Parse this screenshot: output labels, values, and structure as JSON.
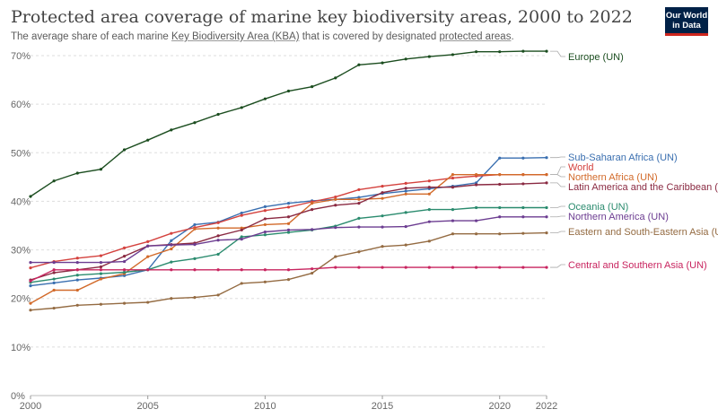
{
  "header": {
    "title": "Protected area coverage of marine key biodiversity areas, 2000 to 2022",
    "subtitle_prefix": "The average share of each marine ",
    "subtitle_link1": "Key Biodiversity Area (KBA)",
    "subtitle_middle": " that is covered by designated ",
    "subtitle_link2": "protected areas",
    "subtitle_suffix": "."
  },
  "logo": {
    "line1": "Our World",
    "line2": "in Data"
  },
  "chart_data": {
    "type": "line",
    "title": "Protected area coverage of marine key biodiversity areas, 2000 to 2022",
    "xlabel": "",
    "ylabel": "",
    "x": [
      2000,
      2001,
      2002,
      2003,
      2004,
      2005,
      2006,
      2007,
      2008,
      2009,
      2010,
      2011,
      2012,
      2013,
      2014,
      2015,
      2016,
      2017,
      2018,
      2019,
      2020,
      2021,
      2022
    ],
    "xlim": [
      2000,
      2022
    ],
    "ylim": [
      0,
      70
    ],
    "x_ticks": [
      "2000",
      "2005",
      "2010",
      "2015",
      "2020",
      "2022"
    ],
    "y_ticks": [
      "0%",
      "10%",
      "20%",
      "30%",
      "40%",
      "50%",
      "60%",
      "70%"
    ],
    "grid": true,
    "legend": "right, labels at line ends",
    "series": [
      {
        "name": "Europe (UN)",
        "color": "#1b4d1f",
        "values": [
          41,
          44.2,
          45.8,
          46.6,
          50.6,
          52.6,
          54.7,
          56.2,
          57.9,
          59.3,
          61.1,
          62.7,
          63.6,
          65.4,
          68.1,
          68.5,
          69.3,
          69.8,
          70.2,
          70.8,
          70.8,
          70.9,
          70.9
        ]
      },
      {
        "name": "Sub-Saharan Africa (UN)",
        "color": "#3a6fb0",
        "values": [
          22.6,
          23.2,
          23.8,
          24.2,
          24.7,
          25.9,
          31.9,
          35.2,
          35.7,
          37.6,
          38.9,
          39.6,
          40.1,
          40.4,
          40.8,
          41.6,
          42.1,
          42.6,
          43.1,
          43.8,
          48.9,
          48.9,
          49
        ]
      },
      {
        "name": "World",
        "color": "#d4423e",
        "values": [
          26.3,
          27.6,
          28.3,
          28.8,
          30.4,
          31.7,
          33.4,
          34.6,
          35.6,
          37.1,
          38.1,
          38.8,
          39.9,
          40.9,
          42.4,
          43.1,
          43.7,
          44.2,
          44.8,
          45.2,
          45.5,
          45.5,
          45.5
        ]
      },
      {
        "name": "Northern Africa (UN)",
        "color": "#d26a2a",
        "values": [
          19,
          21.7,
          21.7,
          24,
          25.1,
          28.6,
          30.2,
          34.3,
          34.5,
          34.5,
          35.2,
          35.4,
          39.6,
          40.4,
          40.4,
          40.6,
          41.5,
          41.5,
          45.5,
          45.5,
          45.5,
          45.5,
          45.5
        ]
      },
      {
        "name": "Latin America and the Caribbean (UN)",
        "color": "#8a2a42",
        "values": [
          23.8,
          25.3,
          25.9,
          26.5,
          28.7,
          30.8,
          31.1,
          31.4,
          32.9,
          34.1,
          36.4,
          36.8,
          38.3,
          39.2,
          39.6,
          41.8,
          42.7,
          42.9,
          42.9,
          43.4,
          43.5,
          43.6,
          43.8
        ]
      },
      {
        "name": "Oceania (UN)",
        "color": "#2a8b6e",
        "values": [
          23.3,
          24,
          24.8,
          25.1,
          25.4,
          25.9,
          27.5,
          28.2,
          29.1,
          32.7,
          33.1,
          33.6,
          34.1,
          34.9,
          36.5,
          37,
          37.7,
          38.3,
          38.3,
          38.7,
          38.7,
          38.7,
          38.7
        ]
      },
      {
        "name": "Northern America (UN)",
        "color": "#6c3d91",
        "values": [
          27.4,
          27.4,
          27.4,
          27.4,
          27.6,
          30.8,
          31,
          31.1,
          32,
          32.2,
          33.7,
          34.1,
          34.2,
          34.6,
          34.7,
          34.7,
          34.8,
          35.8,
          36,
          36,
          36.8,
          36.8,
          36.8
        ]
      },
      {
        "name": "Eastern and South-Eastern Asia (UN)",
        "color": "#946b42",
        "values": [
          17.6,
          18,
          18.6,
          18.8,
          19,
          19.2,
          20,
          20.2,
          20.7,
          23.1,
          23.4,
          23.9,
          25.2,
          28.6,
          29.6,
          30.7,
          31,
          31.8,
          33.3,
          33.3,
          33.3,
          33.4,
          33.5
        ]
      },
      {
        "name": "Central and Southern Asia (UN)",
        "color": "#c8245f",
        "values": [
          23.6,
          25.9,
          25.9,
          25.9,
          25.9,
          25.9,
          25.9,
          25.9,
          25.9,
          25.9,
          25.9,
          25.9,
          26.1,
          26.4,
          26.4,
          26.4,
          26.4,
          26.4,
          26.4,
          26.4,
          26.4,
          26.4,
          26.4
        ]
      }
    ]
  }
}
